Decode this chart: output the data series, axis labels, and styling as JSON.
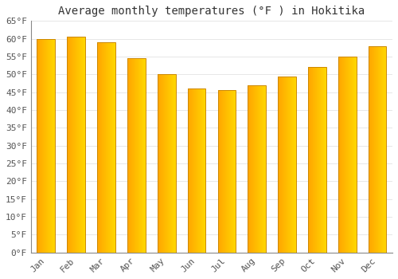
{
  "title": "Average monthly temperatures (°F ) in Hokitika",
  "months": [
    "Jan",
    "Feb",
    "Mar",
    "Apr",
    "May",
    "Jun",
    "Jul",
    "Aug",
    "Sep",
    "Oct",
    "Nov",
    "Dec"
  ],
  "values": [
    60,
    60.5,
    59,
    54.5,
    50,
    46,
    45.5,
    47,
    49.5,
    52,
    55,
    58
  ],
  "bar_color_left": "#FFA500",
  "bar_color_right": "#FFD700",
  "bar_color_edge": "#CC8800",
  "ylim": [
    0,
    65
  ],
  "ytick_step": 5,
  "background_color": "#FFFFFF",
  "grid_color": "#DDDDDD",
  "title_fontsize": 10,
  "tick_fontsize": 8,
  "font_family": "monospace",
  "bar_width": 0.6
}
